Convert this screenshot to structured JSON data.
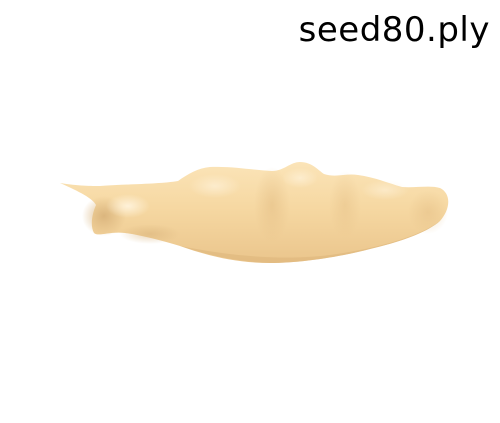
{
  "viewer": {
    "filename": "seed80.ply"
  },
  "model": {
    "surface_color": "#f7d9a6",
    "shadow_color": "#d9b57c",
    "highlight_color": "#fdf0d6"
  }
}
